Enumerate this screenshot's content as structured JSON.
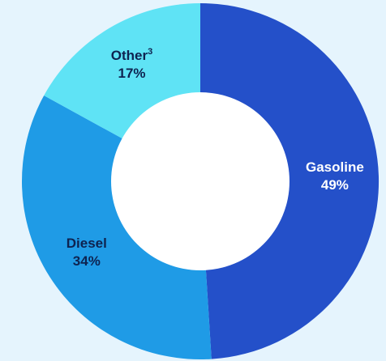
{
  "chart_data": {
    "type": "pie",
    "style": "donut",
    "categories": [
      "Gasoline",
      "Diesel",
      "Other"
    ],
    "values": [
      49,
      34,
      17
    ],
    "value_labels": [
      "49%",
      "34%",
      "17%"
    ],
    "label_superscripts": [
      "",
      "",
      "3"
    ],
    "colors": [
      "#2450c9",
      "#1f9be6",
      "#5fe3f5"
    ],
    "label_colors": [
      "#ffffff",
      "#0e2350",
      "#0e2350"
    ],
    "title": "",
    "legend": "none"
  },
  "colors": {
    "background": "#e5f4fd",
    "hole": "#ffffff"
  }
}
